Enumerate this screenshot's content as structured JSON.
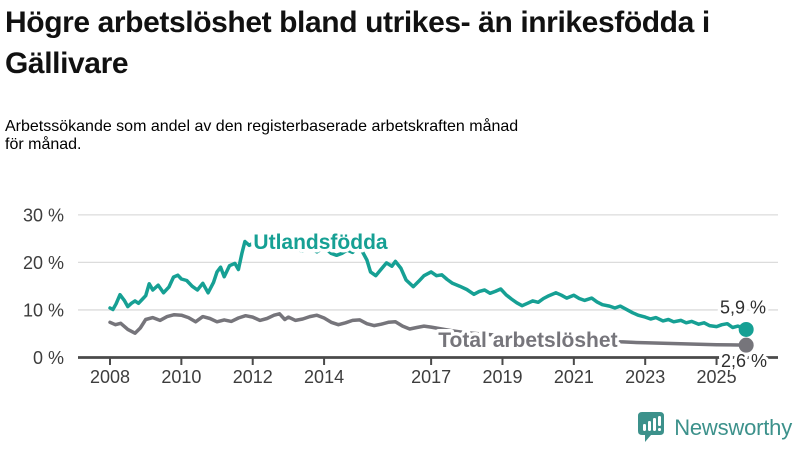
{
  "header": {
    "title_lines": [
      "Högre arbetslöshet bland utrikes- än inrikesfödda i",
      "Gällivare"
    ],
    "subtitle_lines": [
      "Arbetssökande som andel av den registerbaserade arbetskraften månad",
      "för månad."
    ]
  },
  "colors": {
    "foreign_born_line": "#16a094",
    "total_line": "#76757b",
    "axis_text": "#3d3d3d",
    "value_label_text": "#2e2e2e",
    "gridline": "#dcdcdc",
    "axis_line": "#4a4a4a",
    "title": "#111111",
    "logo": "#3c918b",
    "background": "#ffffff"
  },
  "logo": {
    "text": "Newsworthy",
    "icon": "newsworthy-bars-speech-bubble-icon",
    "color": "#3c918b"
  },
  "chart_data": {
    "type": "line",
    "title": "Högre arbetslöshet bland utrikes- än inrikesfödda i Gällivare",
    "subtitle": "Arbetssökande som andel av den registerbaserade arbetskraften månad för månad.",
    "grid": "horizontal",
    "legend_position": "inline-labels",
    "x_axis": {
      "range": [
        2007.1,
        2026.7
      ],
      "ticks": [
        {
          "value": 2008,
          "label": "2008"
        },
        {
          "value": 2010,
          "label": "2010"
        },
        {
          "value": 2012,
          "label": "2012"
        },
        {
          "value": 2014,
          "label": "2014"
        },
        {
          "value": 2017,
          "label": "2017"
        },
        {
          "value": 2019,
          "label": "2019"
        },
        {
          "value": 2021,
          "label": "2021"
        },
        {
          "value": 2023,
          "label": "2023"
        },
        {
          "value": 2025,
          "label": "2025"
        }
      ]
    },
    "y_axis": {
      "unit": "%",
      "range": [
        0,
        30
      ],
      "ticks": [
        {
          "value": 0,
          "label": "0 %"
        },
        {
          "value": 10,
          "label": "10 %"
        },
        {
          "value": 20,
          "label": "20 %"
        },
        {
          "value": 30,
          "label": "30 %"
        }
      ]
    },
    "series": [
      {
        "name": "Utlandsfödda",
        "color": "#16a094",
        "end_label": "5,9 %",
        "end_value": 5.9,
        "points": [
          [
            2008.0,
            10.4
          ],
          [
            2008.08,
            10.1
          ],
          [
            2008.17,
            11.3
          ],
          [
            2008.28,
            13.2
          ],
          [
            2008.4,
            12.0
          ],
          [
            2008.5,
            10.7
          ],
          [
            2008.6,
            11.4
          ],
          [
            2008.7,
            11.9
          ],
          [
            2008.8,
            11.4
          ],
          [
            2008.9,
            12.2
          ],
          [
            2009.0,
            13.0
          ],
          [
            2009.1,
            15.5
          ],
          [
            2009.2,
            14.2
          ],
          [
            2009.35,
            15.2
          ],
          [
            2009.5,
            13.6
          ],
          [
            2009.65,
            14.8
          ],
          [
            2009.78,
            16.9
          ],
          [
            2009.9,
            17.3
          ],
          [
            2010.0,
            16.5
          ],
          [
            2010.15,
            16.2
          ],
          [
            2010.3,
            15.0
          ],
          [
            2010.45,
            14.2
          ],
          [
            2010.6,
            15.6
          ],
          [
            2010.75,
            13.6
          ],
          [
            2010.9,
            15.8
          ],
          [
            2011.0,
            18.0
          ],
          [
            2011.1,
            19.0
          ],
          [
            2011.2,
            17.0
          ],
          [
            2011.35,
            19.3
          ],
          [
            2011.5,
            19.8
          ],
          [
            2011.6,
            18.5
          ],
          [
            2011.7,
            22.0
          ],
          [
            2011.78,
            24.4
          ],
          [
            2011.9,
            23.6
          ],
          [
            2012.0,
            24.0
          ],
          [
            2012.1,
            24.6
          ],
          [
            2012.25,
            23.4
          ],
          [
            2012.4,
            23.8
          ],
          [
            2012.55,
            23.1
          ],
          [
            2012.7,
            23.9
          ],
          [
            2012.85,
            24.5
          ],
          [
            2013.0,
            23.8
          ],
          [
            2013.2,
            22.8
          ],
          [
            2013.4,
            22.4
          ],
          [
            2013.6,
            23.1
          ],
          [
            2013.8,
            22.2
          ],
          [
            2014.0,
            23.2
          ],
          [
            2014.2,
            21.9
          ],
          [
            2014.35,
            21.5
          ],
          [
            2014.5,
            21.9
          ],
          [
            2014.65,
            22.6
          ],
          [
            2014.8,
            22.1
          ],
          [
            2014.95,
            23.3
          ],
          [
            2015.05,
            22.6
          ],
          [
            2015.2,
            20.5
          ],
          [
            2015.3,
            18.0
          ],
          [
            2015.45,
            17.2
          ],
          [
            2015.6,
            18.6
          ],
          [
            2015.75,
            19.9
          ],
          [
            2015.9,
            19.2
          ],
          [
            2016.0,
            20.2
          ],
          [
            2016.15,
            18.8
          ],
          [
            2016.3,
            16.3
          ],
          [
            2016.5,
            14.9
          ],
          [
            2016.65,
            16.0
          ],
          [
            2016.8,
            17.2
          ],
          [
            2017.0,
            18.0
          ],
          [
            2017.15,
            17.2
          ],
          [
            2017.3,
            17.4
          ],
          [
            2017.45,
            16.4
          ],
          [
            2017.6,
            15.6
          ],
          [
            2017.8,
            15.0
          ],
          [
            2018.0,
            14.3
          ],
          [
            2018.2,
            13.3
          ],
          [
            2018.35,
            13.9
          ],
          [
            2018.5,
            14.2
          ],
          [
            2018.65,
            13.5
          ],
          [
            2018.8,
            13.9
          ],
          [
            2018.95,
            14.4
          ],
          [
            2019.1,
            13.2
          ],
          [
            2019.25,
            12.3
          ],
          [
            2019.4,
            11.5
          ],
          [
            2019.55,
            10.9
          ],
          [
            2019.7,
            11.4
          ],
          [
            2019.85,
            11.9
          ],
          [
            2020.0,
            11.6
          ],
          [
            2020.15,
            12.4
          ],
          [
            2020.3,
            13.0
          ],
          [
            2020.5,
            13.6
          ],
          [
            2020.65,
            13.1
          ],
          [
            2020.8,
            12.5
          ],
          [
            2021.0,
            13.1
          ],
          [
            2021.15,
            12.4
          ],
          [
            2021.3,
            12.0
          ],
          [
            2021.5,
            12.5
          ],
          [
            2021.65,
            11.7
          ],
          [
            2021.8,
            11.1
          ],
          [
            2022.0,
            10.8
          ],
          [
            2022.15,
            10.4
          ],
          [
            2022.3,
            10.8
          ],
          [
            2022.5,
            10.0
          ],
          [
            2022.65,
            9.4
          ],
          [
            2022.8,
            8.9
          ],
          [
            2023.0,
            8.5
          ],
          [
            2023.15,
            8.1
          ],
          [
            2023.3,
            8.4
          ],
          [
            2023.5,
            7.7
          ],
          [
            2023.65,
            8.0
          ],
          [
            2023.8,
            7.5
          ],
          [
            2024.0,
            7.8
          ],
          [
            2024.15,
            7.3
          ],
          [
            2024.3,
            7.6
          ],
          [
            2024.5,
            7.0
          ],
          [
            2024.65,
            7.3
          ],
          [
            2024.8,
            6.7
          ],
          [
            2025.0,
            6.5
          ],
          [
            2025.15,
            6.9
          ],
          [
            2025.3,
            7.1
          ],
          [
            2025.45,
            6.3
          ],
          [
            2025.6,
            6.6
          ],
          [
            2025.83,
            5.9
          ]
        ]
      },
      {
        "name": "Total arbetslöshet",
        "color": "#76757b",
        "end_label": "2,6 %",
        "end_value": 2.6,
        "points": [
          [
            2008.0,
            7.4
          ],
          [
            2008.15,
            6.9
          ],
          [
            2008.3,
            7.2
          ],
          [
            2008.5,
            5.9
          ],
          [
            2008.7,
            5.1
          ],
          [
            2008.85,
            6.2
          ],
          [
            2009.0,
            8.0
          ],
          [
            2009.2,
            8.4
          ],
          [
            2009.4,
            7.8
          ],
          [
            2009.6,
            8.6
          ],
          [
            2009.8,
            9.0
          ],
          [
            2010.0,
            8.9
          ],
          [
            2010.2,
            8.4
          ],
          [
            2010.4,
            7.5
          ],
          [
            2010.6,
            8.6
          ],
          [
            2010.8,
            8.2
          ],
          [
            2011.0,
            7.5
          ],
          [
            2011.2,
            7.9
          ],
          [
            2011.4,
            7.6
          ],
          [
            2011.6,
            8.3
          ],
          [
            2011.8,
            8.8
          ],
          [
            2012.0,
            8.5
          ],
          [
            2012.2,
            7.8
          ],
          [
            2012.4,
            8.2
          ],
          [
            2012.6,
            8.9
          ],
          [
            2012.75,
            9.2
          ],
          [
            2012.9,
            8.0
          ],
          [
            2013.0,
            8.5
          ],
          [
            2013.2,
            7.8
          ],
          [
            2013.4,
            8.1
          ],
          [
            2013.6,
            8.6
          ],
          [
            2013.8,
            8.9
          ],
          [
            2014.0,
            8.3
          ],
          [
            2014.2,
            7.4
          ],
          [
            2014.4,
            6.9
          ],
          [
            2014.6,
            7.3
          ],
          [
            2014.8,
            7.8
          ],
          [
            2015.0,
            7.9
          ],
          [
            2015.2,
            7.1
          ],
          [
            2015.4,
            6.7
          ],
          [
            2015.6,
            7.0
          ],
          [
            2015.8,
            7.4
          ],
          [
            2016.0,
            7.5
          ],
          [
            2016.2,
            6.6
          ],
          [
            2016.4,
            6.0
          ],
          [
            2016.6,
            6.3
          ],
          [
            2016.8,
            6.6
          ],
          [
            2017.0,
            6.4
          ],
          [
            2017.3,
            6.0
          ],
          [
            2017.6,
            5.6
          ],
          [
            2018.0,
            5.2
          ],
          [
            2018.5,
            4.9
          ],
          [
            2019.0,
            4.6
          ],
          [
            2019.5,
            4.3
          ],
          [
            2020.0,
            4.6
          ],
          [
            2020.5,
            4.4
          ],
          [
            2021.0,
            4.1
          ],
          [
            2021.5,
            3.8
          ],
          [
            2022.0,
            3.5
          ],
          [
            2022.3,
            3.3
          ],
          [
            2022.6,
            3.2
          ],
          [
            2023.0,
            3.1
          ],
          [
            2023.5,
            3.0
          ],
          [
            2024.0,
            2.9
          ],
          [
            2024.5,
            2.8
          ],
          [
            2025.0,
            2.7
          ],
          [
            2025.4,
            2.65
          ],
          [
            2025.83,
            2.6
          ]
        ]
      }
    ]
  }
}
